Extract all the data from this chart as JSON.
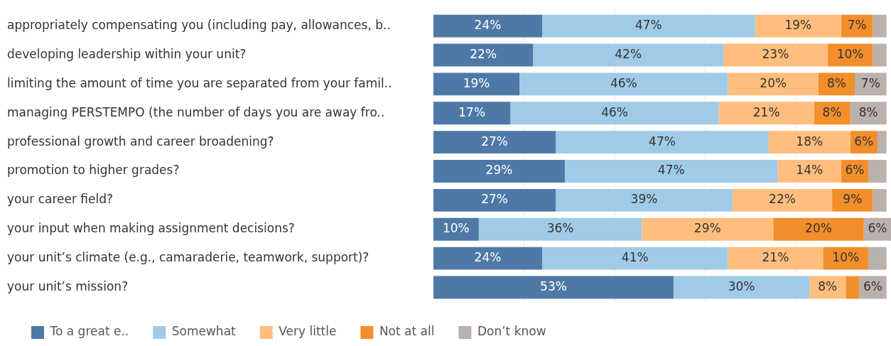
{
  "chart_data": {
    "type": "bar",
    "orientation": "horizontal",
    "stacked": true,
    "categories": [
      "appropriately compensating you (including pay, allowances, b..",
      "developing leadership within your unit?",
      "limiting the amount of time you are separated from your famil..",
      "managing PERSTEMPO (the number of days you are away fro..",
      "professional growth and career broadening?",
      "promotion to higher grades?",
      "your career field?",
      "your input when making assignment decisions?",
      "your unit’s climate (e.g., camaraderie, teamwork, support)?",
      "your unit’s mission?"
    ],
    "series": [
      {
        "name": "To a great e..",
        "color": "#4e79a7",
        "values": [
          24,
          22,
          19,
          17,
          27,
          29,
          27,
          10,
          24,
          53
        ],
        "value_labels": [
          "24%",
          "22%",
          "19%",
          "17%",
          "27%",
          "29%",
          "27%",
          "10%",
          "24%",
          "53%"
        ]
      },
      {
        "name": "Somewhat",
        "color": "#a0cbe8",
        "values": [
          47,
          42,
          46,
          46,
          47,
          47,
          39,
          36,
          41,
          30
        ],
        "value_labels": [
          "47%",
          "42%",
          "46%",
          "46%",
          "47%",
          "47%",
          "39%",
          "36%",
          "41%",
          "30%"
        ]
      },
      {
        "name": "Very little",
        "color": "#ffbe7d",
        "values": [
          19,
          23,
          20,
          21,
          18,
          14,
          22,
          29,
          21,
          8
        ],
        "value_labels": [
          "19%",
          "23%",
          "20%",
          "21%",
          "18%",
          "14%",
          "22%",
          "29%",
          "21%",
          "8%"
        ]
      },
      {
        "name": "Not at all",
        "color": "#f28e2b",
        "values": [
          7,
          10,
          8,
          8,
          6,
          6,
          9,
          20,
          10,
          3
        ],
        "value_labels": [
          "7%",
          "10%",
          "8%",
          "8%",
          "6%",
          "6%",
          "9%",
          "20%",
          "10%",
          null
        ]
      },
      {
        "name": "Don’t know",
        "color": "#bab0ac",
        "values": [
          3,
          3,
          7,
          8,
          2,
          4,
          3,
          6,
          4,
          6
        ],
        "value_labels": [
          null,
          null,
          "7%",
          "8%",
          null,
          null,
          null,
          "6%",
          null,
          "6%"
        ]
      }
    ],
    "xlim": [
      0,
      101
    ],
    "xticks": [
      {
        "value": 20,
        "label": null
      },
      {
        "value": 40,
        "label": null
      },
      {
        "value": 60,
        "label": null
      },
      {
        "value": 80,
        "label": null
      }
    ],
    "grid": "x",
    "legend": "bottom left",
    "tick_labels": "y"
  }
}
